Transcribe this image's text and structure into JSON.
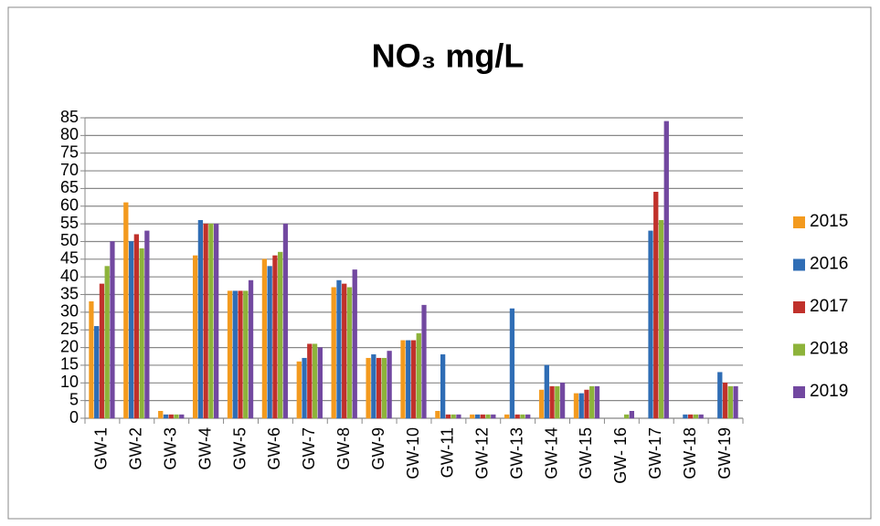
{
  "chart_data": {
    "type": "bar",
    "title": "NO₃ mg/L",
    "categories": [
      "GW-1",
      "GW-2",
      "GW-3",
      "GW-4",
      "GW-5",
      "GW-6",
      "GW-7",
      "GW-8",
      "GW-9",
      "GW-10",
      "GW-11",
      "GW-12",
      "GW-13",
      "GW-14",
      "GW-15",
      "GW- 16",
      "GW-17",
      "GW-18",
      "GW-19"
    ],
    "series": [
      {
        "name": "2015",
        "color": "#f39a1e",
        "values": [
          33,
          61,
          2,
          46,
          36,
          45,
          16,
          37,
          17,
          22,
          2,
          1,
          1,
          8,
          7,
          null,
          null,
          null,
          null
        ]
      },
      {
        "name": "2016",
        "color": "#2f6db5",
        "values": [
          26,
          50,
          1,
          56,
          36,
          43,
          17,
          39,
          18,
          22,
          18,
          1,
          31,
          15,
          7,
          null,
          53,
          1,
          13
        ]
      },
      {
        "name": "2017",
        "color": "#c0312b",
        "values": [
          38,
          52,
          1,
          55,
          36,
          46,
          21,
          38,
          17,
          22,
          1,
          1,
          1,
          9,
          8,
          null,
          64,
          1,
          10
        ]
      },
      {
        "name": "2018",
        "color": "#8db33a",
        "values": [
          43,
          48,
          1,
          55,
          36,
          47,
          21,
          37,
          17,
          24,
          1,
          1,
          1,
          9,
          9,
          1,
          56,
          1,
          9
        ]
      },
      {
        "name": "2019",
        "color": "#7248a0",
        "values": [
          50,
          53,
          1,
          55,
          39,
          55,
          20,
          42,
          19,
          32,
          1,
          1,
          1,
          10,
          9,
          2,
          84,
          1,
          9
        ]
      }
    ],
    "ylim": [
      0,
      85
    ],
    "yticks": [
      0,
      5,
      10,
      15,
      20,
      25,
      30,
      35,
      40,
      45,
      50,
      55,
      60,
      65,
      70,
      75,
      80,
      85
    ],
    "grid": true
  }
}
